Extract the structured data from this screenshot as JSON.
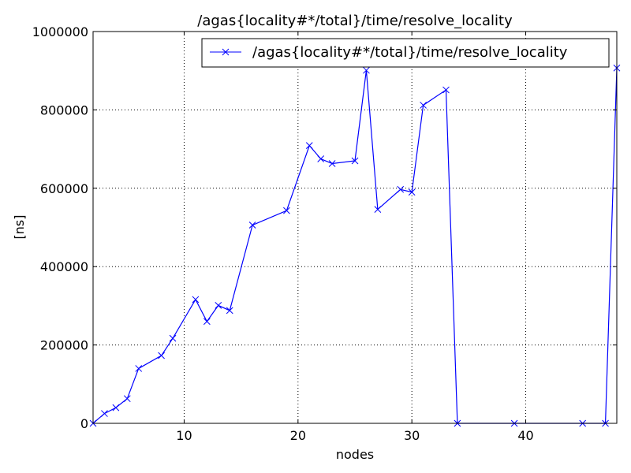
{
  "chart_data": {
    "type": "line",
    "title": "/agas{locality#*/total}/time/resolve_locality",
    "xlabel": "nodes",
    "ylabel": "[ns]",
    "xlim": [
      2,
      48
    ],
    "ylim": [
      0,
      1000000
    ],
    "xticks": [
      10,
      20,
      30,
      40
    ],
    "yticks": [
      0,
      200000,
      400000,
      600000,
      800000,
      1000000
    ],
    "grid": true,
    "legend_position": "top-right",
    "series": [
      {
        "name": "/agas{locality#*/total}/time/resolve_locality",
        "color": "#0000ff",
        "marker": "x",
        "x": [
          2,
          3,
          4,
          5,
          6,
          8,
          9,
          11,
          12,
          13,
          14,
          16,
          19,
          21,
          22,
          23,
          25,
          26,
          27,
          29,
          30,
          31,
          33,
          34,
          39,
          45,
          47,
          48
        ],
        "y": [
          0,
          25000,
          40000,
          63000,
          140000,
          173000,
          217000,
          316000,
          260000,
          301000,
          288000,
          506000,
          543000,
          709000,
          675000,
          663000,
          670000,
          901000,
          546000,
          597000,
          590000,
          812000,
          851000,
          0,
          0,
          0,
          0,
          907000
        ]
      }
    ]
  }
}
